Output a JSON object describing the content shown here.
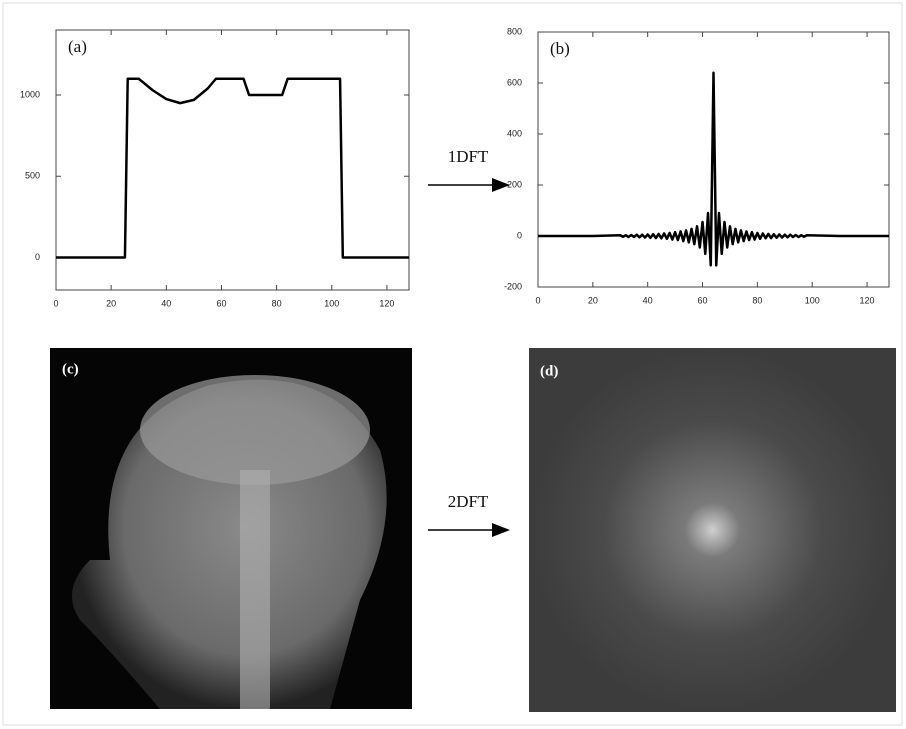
{
  "chart_data": [
    {
      "type": "line",
      "title": "(a)",
      "color": "#000",
      "x": [
        0,
        25,
        26,
        30,
        35,
        40,
        45,
        50,
        55,
        58,
        68,
        70,
        82,
        84,
        103,
        104,
        128
      ],
      "values": [
        0,
        0,
        1100,
        1100,
        1030,
        975,
        950,
        970,
        1040,
        1100,
        1100,
        1000,
        1000,
        1100,
        1100,
        0,
        0
      ],
      "xlim": [
        0,
        128
      ],
      "ylim": [
        -200,
        1400
      ],
      "xticks": [
        0,
        20,
        40,
        60,
        80,
        100,
        120
      ],
      "yticks": [
        0,
        500,
        1000
      ]
    },
    {
      "type": "line",
      "title": "(b)",
      "color": "#000",
      "x": [
        0,
        10,
        20,
        30,
        31,
        32,
        33,
        34,
        35,
        36,
        37,
        38,
        39,
        40,
        41,
        42,
        43,
        44,
        45,
        46,
        47,
        48,
        49,
        50,
        51,
        52,
        53,
        54,
        55,
        56,
        57,
        58,
        59,
        60,
        61,
        62,
        63,
        64,
        65,
        66,
        67,
        68,
        69,
        70,
        71,
        72,
        73,
        74,
        75,
        76,
        77,
        78,
        79,
        80,
        81,
        82,
        83,
        84,
        85,
        86,
        87,
        88,
        89,
        90,
        91,
        92,
        93,
        94,
        95,
        96,
        97,
        98,
        110,
        120,
        128
      ],
      "values": [
        0,
        0,
        0,
        3,
        -3,
        3,
        -4,
        4,
        -4,
        5,
        -5,
        5,
        -6,
        6,
        -7,
        7,
        -8,
        8,
        -9,
        10,
        -11,
        12,
        -14,
        15,
        -16,
        18,
        -20,
        22,
        -25,
        28,
        -32,
        38,
        -45,
        55,
        -70,
        90,
        -115,
        640,
        -115,
        90,
        -70,
        55,
        -45,
        38,
        -32,
        28,
        -25,
        22,
        -20,
        18,
        -16,
        15,
        -14,
        12,
        -11,
        10,
        -9,
        8,
        -8,
        7,
        -7,
        6,
        -6,
        5,
        -5,
        5,
        -4,
        4,
        -4,
        3,
        -3,
        3,
        0,
        0,
        0
      ],
      "xlim": [
        0,
        128
      ],
      "ylim": [
        -200,
        800
      ],
      "xticks": [
        0,
        20,
        40,
        60,
        80,
        100,
        120
      ],
      "yticks": [
        -200,
        0,
        200,
        400,
        600,
        800
      ]
    }
  ],
  "images": [
    {
      "label": "(c)"
    },
    {
      "label": "(d)"
    }
  ],
  "arrows": [
    {
      "label": "1DFT"
    },
    {
      "label": "2DFT"
    }
  ]
}
